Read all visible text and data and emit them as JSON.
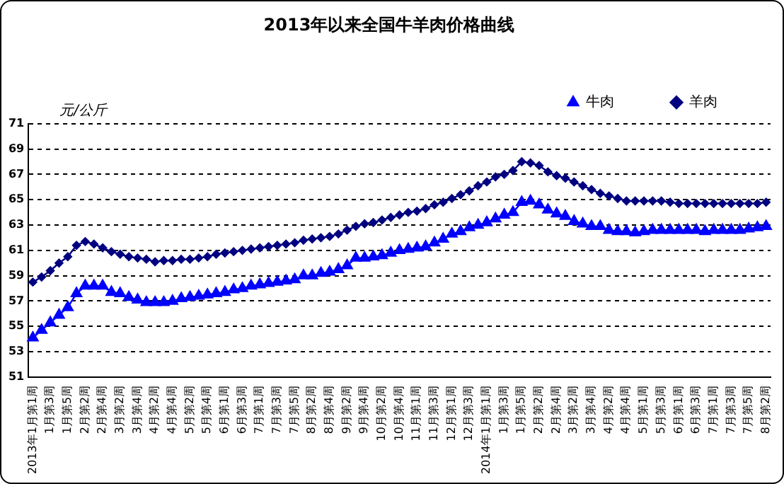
{
  "chart_data": {
    "type": "line",
    "title": "2013年以来全国牛羊肉价格曲线",
    "ylabel": "元/公斤",
    "categories": [
      "2013年1月第1周",
      null,
      "1月第3周",
      null,
      "1月第5周",
      null,
      "2月第2周",
      null,
      "2月第4周",
      null,
      "3月第2周",
      null,
      "3月第4周",
      null,
      "4月第2周",
      null,
      "4月第4周",
      null,
      "5月第2周",
      null,
      "5月第4周",
      null,
      "6月第1周",
      null,
      "6月第3周",
      null,
      "7月第1周",
      null,
      "7月第3周",
      null,
      "7月第5周",
      null,
      "8月第2周",
      null,
      "8月第4周",
      null,
      "9月第2周",
      null,
      "9月第4周",
      null,
      "10月第2周",
      null,
      "10月第4周",
      null,
      "11月第1周",
      null,
      "11月第3周",
      null,
      "12月第1周",
      null,
      "12月第3周",
      null,
      "2014年1月第1周",
      null,
      "1月第3周",
      null,
      "1月第5周",
      null,
      "2月第2周",
      null,
      "2月第4周",
      null,
      "3月第2周",
      null,
      "3月第4周",
      null,
      "4月第2周",
      null,
      "4月第4周",
      null,
      "5月第1周",
      null,
      "5月第3周",
      null,
      "6月第1周",
      null,
      "6月第3周",
      null,
      "7月第1周",
      null,
      "7月第3周",
      null,
      "7月第5周",
      null,
      "8月第2周"
    ],
    "series": [
      {
        "name": "牛肉",
        "color": "#0000ff",
        "marker": "triangle",
        "values": [
          54.1,
          54.7,
          55.3,
          55.9,
          56.5,
          57.6,
          58.2,
          58.2,
          58.2,
          57.7,
          57.6,
          57.3,
          57.1,
          56.9,
          56.9,
          56.9,
          57.0,
          57.2,
          57.3,
          57.4,
          57.5,
          57.6,
          57.7,
          57.9,
          58.0,
          58.2,
          58.3,
          58.4,
          58.5,
          58.6,
          58.7,
          59.0,
          59.0,
          59.2,
          59.3,
          59.5,
          59.8,
          60.4,
          60.4,
          60.5,
          60.6,
          60.8,
          61.0,
          61.1,
          61.2,
          61.3,
          61.6,
          61.9,
          62.3,
          62.5,
          62.8,
          63.0,
          63.2,
          63.5,
          63.8,
          64.0,
          64.8,
          64.9,
          64.6,
          64.2,
          63.9,
          63.7,
          63.3,
          63.1,
          62.9,
          62.9,
          62.6,
          62.5,
          62.5,
          62.4,
          62.5,
          62.6,
          62.6,
          62.6,
          62.6,
          62.6,
          62.6,
          62.5,
          62.6,
          62.6,
          62.6,
          62.6,
          62.7,
          62.8,
          62.9
        ]
      },
      {
        "name": "羊肉",
        "color": "#000080",
        "marker": "diamond",
        "values": [
          58.5,
          58.9,
          59.4,
          60.0,
          60.5,
          61.4,
          61.7,
          61.5,
          61.2,
          60.9,
          60.7,
          60.5,
          60.4,
          60.3,
          60.1,
          60.2,
          60.2,
          60.3,
          60.3,
          60.4,
          60.5,
          60.7,
          60.8,
          60.9,
          61.0,
          61.1,
          61.2,
          61.3,
          61.4,
          61.5,
          61.6,
          61.8,
          61.9,
          62.0,
          62.1,
          62.3,
          62.6,
          62.9,
          63.1,
          63.2,
          63.4,
          63.6,
          63.8,
          64.0,
          64.1,
          64.3,
          64.6,
          64.8,
          65.1,
          65.4,
          65.7,
          66.1,
          66.4,
          66.8,
          67.0,
          67.3,
          68.0,
          67.9,
          67.7,
          67.2,
          66.9,
          66.7,
          66.4,
          66.1,
          65.8,
          65.5,
          65.3,
          65.1,
          64.9,
          64.9,
          64.9,
          64.9,
          64.9,
          64.8,
          64.7,
          64.7,
          64.7,
          64.7,
          64.7,
          64.7,
          64.7,
          64.7,
          64.7,
          64.7,
          64.8
        ]
      }
    ],
    "ylim": [
      51,
      71
    ],
    "yticks": [
      51,
      53,
      55,
      57,
      59,
      61,
      63,
      65,
      67,
      69,
      71
    ],
    "grid": "y",
    "legend": "top right",
    "line_style": "solid"
  }
}
